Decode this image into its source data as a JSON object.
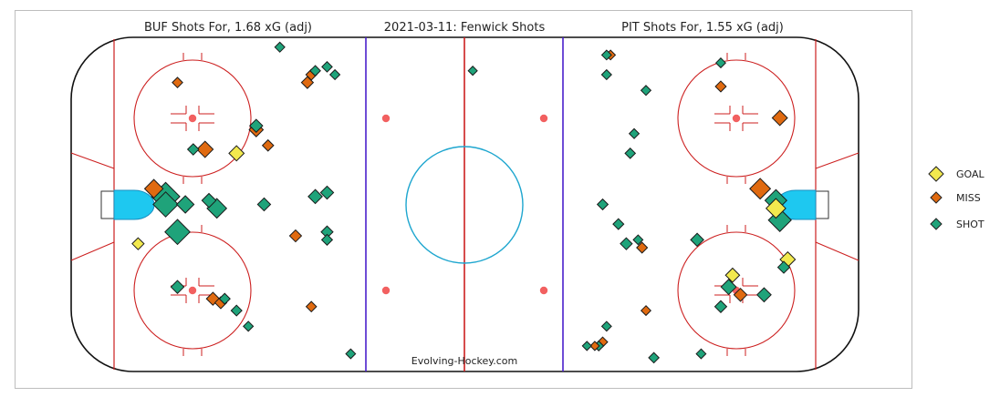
{
  "chart_data": {
    "type": "scatter",
    "title_left": "BUF Shots For, 1.68 xG (adj)",
    "title_center": "2021-03-11:  Fenwick Shots",
    "title_right": "PIT Shots For, 1.55 xG (adj)",
    "credit": "Evolving-Hockey.com",
    "xlim": [
      -100,
      100
    ],
    "ylim": [
      -42.5,
      42.5
    ],
    "legend": [
      {
        "label": "GOAL",
        "color": "#f2e94e"
      },
      {
        "label": "MISS",
        "color": "#e06a10"
      },
      {
        "label": "SHOT",
        "color": "#1fa37a"
      }
    ],
    "shots": [
      {
        "team": "BUF",
        "type": "SHOT",
        "x": -76,
        "y": 2,
        "size": 1.0
      },
      {
        "team": "BUF",
        "type": "SHOT",
        "x": -76,
        "y": 0,
        "size": 0.85
      },
      {
        "team": "BUF",
        "type": "MISS",
        "x": -79,
        "y": 4,
        "size": 0.55
      },
      {
        "team": "BUF",
        "type": "SHOT",
        "x": -73,
        "y": -7,
        "size": 0.85
      },
      {
        "team": "BUF",
        "type": "SHOT",
        "x": -71,
        "y": 0,
        "size": 0.5
      },
      {
        "team": "BUF",
        "type": "SHOT",
        "x": -63,
        "y": -1,
        "size": 0.6
      },
      {
        "team": "BUF",
        "type": "SHOT",
        "x": -65,
        "y": 1,
        "size": 0.35
      },
      {
        "team": "BUF",
        "type": "GOAL",
        "x": -83,
        "y": -10,
        "size": 0.25
      },
      {
        "team": "BUF",
        "type": "MISS",
        "x": -66,
        "y": 14,
        "size": 0.45
      },
      {
        "team": "BUF",
        "type": "SHOT",
        "x": -69,
        "y": 14,
        "size": 0.22
      },
      {
        "team": "BUF",
        "type": "GOAL",
        "x": -58,
        "y": 13,
        "size": 0.4
      },
      {
        "team": "BUF",
        "type": "MISS",
        "x": -53,
        "y": 19,
        "size": 0.35
      },
      {
        "team": "BUF",
        "type": "SHOT",
        "x": -53,
        "y": 20,
        "size": 0.3
      },
      {
        "team": "BUF",
        "type": "MISS",
        "x": -50,
        "y": 15,
        "size": 0.22
      },
      {
        "team": "BUF",
        "type": "MISS",
        "x": -73,
        "y": 31,
        "size": 0.18
      },
      {
        "team": "BUF",
        "type": "SHOT",
        "x": -51,
        "y": 0,
        "size": 0.3
      },
      {
        "team": "BUF",
        "type": "MISS",
        "x": -43,
        "y": -8,
        "size": 0.25
      },
      {
        "team": "BUF",
        "type": "SHOT",
        "x": -38,
        "y": 2,
        "size": 0.35
      },
      {
        "team": "BUF",
        "type": "SHOT",
        "x": -35,
        "y": 3,
        "size": 0.3
      },
      {
        "team": "BUF",
        "type": "SHOT",
        "x": -35,
        "y": -7,
        "size": 0.25
      },
      {
        "team": "BUF",
        "type": "SHOT",
        "x": -35,
        "y": -9,
        "size": 0.2
      },
      {
        "team": "BUF",
        "type": "MISS",
        "x": -40,
        "y": 31,
        "size": 0.25
      },
      {
        "team": "BUF",
        "type": "MISS",
        "x": -39,
        "y": 33,
        "size": 0.2
      },
      {
        "team": "BUF",
        "type": "SHOT",
        "x": -38,
        "y": 34,
        "size": 0.18
      },
      {
        "team": "BUF",
        "type": "SHOT",
        "x": -35,
        "y": 35,
        "size": 0.18
      },
      {
        "team": "BUF",
        "type": "SHOT",
        "x": -33,
        "y": 33,
        "size": 0.16
      },
      {
        "team": "BUF",
        "type": "SHOT",
        "x": -47,
        "y": 40,
        "size": 0.16
      },
      {
        "team": "BUF",
        "type": "SHOT",
        "x": -73,
        "y": -21,
        "size": 0.3
      },
      {
        "team": "BUF",
        "type": "MISS",
        "x": -64,
        "y": -24,
        "size": 0.3
      },
      {
        "team": "BUF",
        "type": "MISS",
        "x": -62,
        "y": -25,
        "size": 0.25
      },
      {
        "team": "BUF",
        "type": "SHOT",
        "x": -61,
        "y": -24,
        "size": 0.2
      },
      {
        "team": "BUF",
        "type": "SHOT",
        "x": -58,
        "y": -27,
        "size": 0.2
      },
      {
        "team": "BUF",
        "type": "SHOT",
        "x": -55,
        "y": -31,
        "size": 0.16
      },
      {
        "team": "BUF",
        "type": "MISS",
        "x": -39,
        "y": -26,
        "size": 0.18
      },
      {
        "team": "BUF",
        "type": "SHOT",
        "x": -29,
        "y": -38,
        "size": 0.15
      },
      {
        "team": "PIT",
        "type": "SHOT",
        "x": 2,
        "y": 34,
        "size": 0.12
      },
      {
        "team": "PIT",
        "type": "SHOT",
        "x": 79,
        "y": 1,
        "size": 0.7
      },
      {
        "team": "PIT",
        "type": "MISS",
        "x": 75,
        "y": 4,
        "size": 0.65
      },
      {
        "team": "PIT",
        "type": "GOAL",
        "x": 79,
        "y": -1,
        "size": 0.6
      },
      {
        "team": "PIT",
        "type": "SHOT",
        "x": 80,
        "y": -4,
        "size": 0.75
      },
      {
        "team": "PIT",
        "type": "GOAL",
        "x": 82,
        "y": -14,
        "size": 0.4
      },
      {
        "team": "PIT",
        "type": "SHOT",
        "x": 81,
        "y": -16,
        "size": 0.25
      },
      {
        "team": "PIT",
        "type": "GOAL",
        "x": 68,
        "y": -18,
        "size": 0.35
      },
      {
        "team": "PIT",
        "type": "SHOT",
        "x": 67,
        "y": -21,
        "size": 0.4
      },
      {
        "team": "PIT",
        "type": "MISS",
        "x": 70,
        "y": -23,
        "size": 0.3
      },
      {
        "team": "PIT",
        "type": "SHOT",
        "x": 76,
        "y": -23,
        "size": 0.35
      },
      {
        "team": "PIT",
        "type": "SHOT",
        "x": 65,
        "y": -26,
        "size": 0.25
      },
      {
        "team": "PIT",
        "type": "SHOT",
        "x": 59,
        "y": -9,
        "size": 0.3
      },
      {
        "team": "PIT",
        "type": "SHOT",
        "x": 41,
        "y": -10,
        "size": 0.25
      },
      {
        "team": "PIT",
        "type": "MISS",
        "x": 45,
        "y": -11,
        "size": 0.2
      },
      {
        "team": "PIT",
        "type": "SHOT",
        "x": 44,
        "y": -9,
        "size": 0.15
      },
      {
        "team": "PIT",
        "type": "SHOT",
        "x": 39,
        "y": -5,
        "size": 0.2
      },
      {
        "team": "PIT",
        "type": "SHOT",
        "x": 35,
        "y": 0,
        "size": 0.2
      },
      {
        "team": "PIT",
        "type": "MISS",
        "x": 80,
        "y": 22,
        "size": 0.4
      },
      {
        "team": "PIT",
        "type": "MISS",
        "x": 65,
        "y": 30,
        "size": 0.2
      },
      {
        "team": "PIT",
        "type": "SHOT",
        "x": 65,
        "y": 36,
        "size": 0.15
      },
      {
        "team": "PIT",
        "type": "SHOT",
        "x": 46,
        "y": 29,
        "size": 0.16
      },
      {
        "team": "PIT",
        "type": "SHOT",
        "x": 43,
        "y": 18,
        "size": 0.16
      },
      {
        "team": "PIT",
        "type": "SHOT",
        "x": 42,
        "y": 13,
        "size": 0.18
      },
      {
        "team": "PIT",
        "type": "SHOT",
        "x": 36,
        "y": 33,
        "size": 0.16
      },
      {
        "team": "PIT",
        "type": "MISS",
        "x": 37,
        "y": 38,
        "size": 0.15
      },
      {
        "team": "PIT",
        "type": "SHOT",
        "x": 36,
        "y": 38,
        "size": 0.15
      },
      {
        "team": "PIT",
        "type": "MISS",
        "x": 46,
        "y": -27,
        "size": 0.15
      },
      {
        "team": "PIT",
        "type": "SHOT",
        "x": 36,
        "y": -31,
        "size": 0.15
      },
      {
        "team": "PIT",
        "type": "MISS",
        "x": 35,
        "y": -35,
        "size": 0.16
      },
      {
        "team": "PIT",
        "type": "SHOT",
        "x": 34,
        "y": -36,
        "size": 0.15
      },
      {
        "team": "PIT",
        "type": "MISS",
        "x": 33,
        "y": -36,
        "size": 0.12
      },
      {
        "team": "PIT",
        "type": "SHOT",
        "x": 31,
        "y": -36,
        "size": 0.12
      },
      {
        "team": "PIT",
        "type": "SHOT",
        "x": 48,
        "y": -39,
        "size": 0.18
      },
      {
        "team": "PIT",
        "type": "SHOT",
        "x": 60,
        "y": -38,
        "size": 0.15
      }
    ]
  },
  "colors": {
    "GOAL": "#f2e94e",
    "MISS": "#e06a10",
    "SHOT": "#1fa37a",
    "red_line": "#cc1f1f",
    "blue_line": "#4a1fcc",
    "crease": "#1ec8f0",
    "center_circle": "#1ea6cf",
    "dot": "#f26060"
  }
}
